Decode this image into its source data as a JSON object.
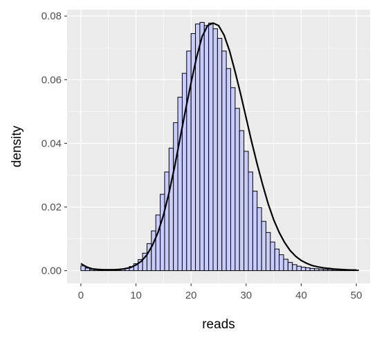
{
  "chart_data": {
    "type": "bar",
    "xlabel": "reads",
    "ylabel": "density",
    "xlim": [
      -2.5,
      52.5
    ],
    "ylim": [
      -0.004,
      0.082
    ],
    "x_ticks": [
      0,
      10,
      20,
      30,
      40,
      50
    ],
    "x_tick_labels": [
      "0",
      "10",
      "20",
      "30",
      "40",
      "50"
    ],
    "y_ticks": [
      0.0,
      0.02,
      0.04,
      0.06,
      0.08
    ],
    "y_tick_labels": [
      "0.00",
      "0.02",
      "0.04",
      "0.06",
      "0.08"
    ],
    "grid": true,
    "bin_width": 0.8,
    "bins_x": [
      0.4,
      1.2,
      2.0,
      2.8,
      3.6,
      4.4,
      5.2,
      6.0,
      6.8,
      7.6,
      8.4,
      9.2,
      10.0,
      10.8,
      11.6,
      12.4,
      13.2,
      14.0,
      14.8,
      15.6,
      16.4,
      17.2,
      18.0,
      18.8,
      19.6,
      20.4,
      21.2,
      22.0,
      22.8,
      23.6,
      24.4,
      25.2,
      26.0,
      26.8,
      27.6,
      28.4,
      29.2,
      30.0,
      30.8,
      31.6,
      32.4,
      33.2,
      34.0,
      34.8,
      35.6,
      36.4,
      37.2,
      38.0,
      38.8,
      39.6,
      40.4,
      41.2,
      42.0,
      42.8,
      43.6,
      44.4,
      45.2,
      46.0,
      46.8,
      47.6,
      48.4,
      49.2,
      50.0
    ],
    "bins_density": [
      0.0015,
      0.0008,
      0.0004,
      0.0003,
      0.0002,
      0.0002,
      0.0002,
      0.0002,
      0.0003,
      0.0005,
      0.0008,
      0.0013,
      0.0022,
      0.0035,
      0.0055,
      0.0085,
      0.0125,
      0.0175,
      0.024,
      0.031,
      0.0385,
      0.0465,
      0.0545,
      0.062,
      0.069,
      0.0745,
      0.0775,
      0.078,
      0.077,
      0.0778,
      0.076,
      0.073,
      0.069,
      0.0635,
      0.0575,
      0.051,
      0.044,
      0.0375,
      0.031,
      0.025,
      0.0198,
      0.0155,
      0.012,
      0.009,
      0.0068,
      0.005,
      0.0036,
      0.0026,
      0.0019,
      0.0014,
      0.0011,
      0.0009,
      0.0007,
      0.0006,
      0.0005,
      0.0004,
      0.0004,
      0.0003,
      0.0003,
      0.0002,
      0.0002,
      0.0002,
      0.0002
    ],
    "density_x": [
      0,
      1,
      2,
      3,
      4,
      5,
      6,
      7,
      8,
      9,
      10,
      11,
      12,
      13,
      14,
      15,
      16,
      17,
      18,
      19,
      20,
      21,
      22,
      23,
      24,
      25,
      26,
      27,
      28,
      29,
      30,
      31,
      32,
      33,
      34,
      35,
      36,
      37,
      38,
      39,
      40,
      41,
      42,
      43,
      44,
      45,
      46,
      47,
      48,
      49,
      50
    ],
    "density_y": [
      0.0022,
      0.0012,
      0.0006,
      0.0004,
      0.0003,
      0.0003,
      0.0003,
      0.0004,
      0.0006,
      0.001,
      0.0018,
      0.003,
      0.005,
      0.008,
      0.012,
      0.0175,
      0.0245,
      0.0325,
      0.0415,
      0.0505,
      0.059,
      0.067,
      0.0735,
      0.077,
      0.0778,
      0.077,
      0.074,
      0.069,
      0.0625,
      0.0555,
      0.048,
      0.0405,
      0.0335,
      0.027,
      0.021,
      0.016,
      0.012,
      0.0088,
      0.0063,
      0.0045,
      0.0032,
      0.0023,
      0.0016,
      0.0012,
      0.0009,
      0.0007,
      0.0005,
      0.0004,
      0.0003,
      0.0002,
      0.0002
    ]
  },
  "colors": {
    "panel_bg": "#ebebeb",
    "grid": "#ffffff",
    "bar_fill": "#c8ccff",
    "bar_stroke": "#000000",
    "density_line": "#000000",
    "tick": "#333333"
  }
}
